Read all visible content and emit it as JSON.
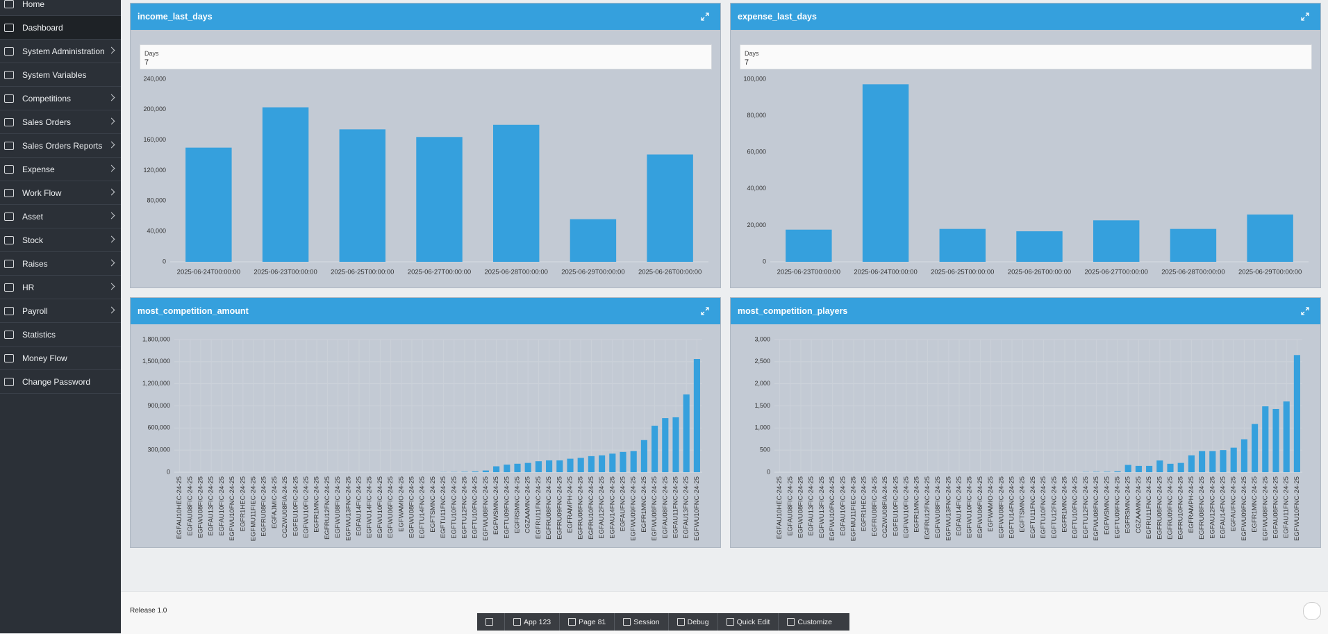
{
  "sidebar": {
    "items": [
      {
        "label": "Home"
      },
      {
        "label": "Dashboard",
        "selected": true
      },
      {
        "label": "System Administration",
        "submenu": true
      },
      {
        "label": "System Variables"
      },
      {
        "label": "Competitions",
        "submenu": true
      },
      {
        "label": "Sales Orders",
        "submenu": true
      },
      {
        "label": "Sales Orders Reports",
        "submenu": true
      },
      {
        "label": "Expense",
        "submenu": true
      },
      {
        "label": "Work Flow",
        "submenu": true
      },
      {
        "label": "Asset",
        "submenu": true
      },
      {
        "label": "Stock",
        "submenu": true
      },
      {
        "label": "Raises",
        "submenu": true
      },
      {
        "label": "HR",
        "submenu": true
      },
      {
        "label": "Payroll",
        "submenu": true
      },
      {
        "label": "Statistics"
      },
      {
        "label": "Money Flow"
      },
      {
        "label": "Change Password"
      }
    ]
  },
  "panels": [
    {
      "title": "income_last_days",
      "filter": {
        "label": "Days",
        "value": "7"
      },
      "chart_data": {
        "type": "bar",
        "color": "#35a0dd",
        "grid": false,
        "categories": [
          "2025-06-24T00:00:00",
          "2025-06-23T00:00:00",
          "2025-06-25T00:00:00",
          "2025-06-27T00:00:00",
          "2025-06-28T00:00:00",
          "2025-06-29T00:00:00",
          "2025-06-26T00:00:00"
        ],
        "values": [
          150000,
          203000,
          174000,
          164000,
          180000,
          56000,
          141000
        ],
        "ylim": [
          0,
          240000
        ],
        "yticks": [
          0,
          {
            "value": 40000,
            "label": "40,000"
          },
          {
            "value": 80000,
            "label": "80,000"
          },
          {
            "value": 120000,
            "label": "120,000"
          },
          {
            "value": 160000,
            "label": "160,000"
          },
          {
            "value": 200000,
            "label": "200,000"
          },
          {
            "value": 240000,
            "label": "240,000"
          }
        ]
      }
    },
    {
      "title": "expense_last_days",
      "filter": {
        "label": "Days",
        "value": "7"
      },
      "chart_data": {
        "type": "bar",
        "color": "#35a0dd",
        "grid": false,
        "categories": [
          "2025-06-23T00:00:00",
          "2025-06-24T00:00:00",
          "2025-06-25T00:00:00",
          "2025-06-26T00:00:00",
          "2025-06-27T00:00:00",
          "2025-06-28T00:00:00",
          "2025-06-29T00:00:00"
        ],
        "values": [
          17600,
          97200,
          18000,
          16700,
          22700,
          18000,
          25900
        ],
        "ylim": [
          0,
          100000
        ],
        "yticks": [
          0,
          {
            "value": 20000,
            "label": "20,000"
          },
          {
            "value": 40000,
            "label": "40,000"
          },
          {
            "value": 60000,
            "label": "60,000"
          },
          {
            "value": 80000,
            "label": "80,000"
          },
          {
            "value": 100000,
            "label": "100,000"
          }
        ]
      }
    },
    {
      "title": "most_competition_amount",
      "chart_data": {
        "type": "bar",
        "color": "#35a0dd",
        "grid": true,
        "categories": [
          "EGFAU10HEC-24-25",
          "EGFAU08FIC-24-25",
          "EGFWU08FIC-24-25",
          "EGFAU13FIC-24-25",
          "EGFAU10FIC-24-25",
          "EGFWU10FNC-24-25",
          "EGFR1HEC-24-25",
          "EGFMU11FIEC-24-25",
          "EGFRU08FIC-24-25",
          "EGFAJMIC-24-25",
          "CGZWU08FIA-24-25",
          "EGFEU10FIC-24-25",
          "EGFWU10FIC-24-25",
          "EGFR1MNC-24-25",
          "EGFRU12FNC-24-25",
          "EGFWU08FIC-24-25",
          "EGFWU13FNC-24-25",
          "EGFAU14FIC-24-25",
          "EGFWU14FIC-24-25",
          "EGFWU10FIC-24-25",
          "EGFWU06FIC-24-25",
          "EGFWAMIO-24-25",
          "EGFWU08FIC-24-25",
          "EGFTU14FNC-24-25",
          "EGFTSMNC-24-25",
          "EGFTU11FNC-24-25",
          "EGFTU10FNC-24-25",
          "EGFTU12FNC-24-25",
          "EGFTU10FNC-24-25",
          "EGFWU08FNC-24-25",
          "EGFWSMNC-24-25",
          "EGFTU09FNC-24-25",
          "EGFRSMNC-24-25",
          "CGZAAMNC-24-25",
          "EGFRU11FNC-24-25",
          "EGFRU08FNC-24-25",
          "EGFRU09FNC-24-25",
          "EGFRAMPH-24-25",
          "EGFRU08FNC-24-25",
          "EGFRU10FNC-24-25",
          "EGFAU12FNC-24-25",
          "EGFAU14FNC-24-25",
          "EGFAUFNC-24-25",
          "EGFWU09FNC-24-25",
          "EGFR1MNC-24-25",
          "EGFWU08FNC-24-25",
          "EGFAU08FNC-24-25",
          "EGFAU11FNC-24-25",
          "EGFAU13FNC-24-25",
          "EGFWU10FNC-24-25"
        ],
        "values": [
          0,
          0,
          0,
          0,
          0,
          0,
          0,
          0,
          0,
          0,
          0,
          0,
          0,
          0,
          0,
          0,
          0,
          0,
          0,
          0,
          0,
          0,
          0,
          0,
          0,
          2000,
          3000,
          5000,
          10000,
          23000,
          80000,
          103000,
          115000,
          126000,
          149000,
          160000,
          160000,
          183000,
          195000,
          218000,
          229000,
          252000,
          275000,
          287000,
          436000,
          631000,
          734000,
          745000,
          1055000,
          1536000
        ],
        "ylim": [
          0,
          1800000
        ],
        "yticks": [
          0,
          {
            "value": 300000,
            "label": "300,000"
          },
          {
            "value": 600000,
            "label": "600,000"
          },
          {
            "value": 900000,
            "label": "900,000"
          },
          {
            "value": 1200000,
            "label": "1,200,000"
          },
          {
            "value": 1500000,
            "label": "1,500,000"
          },
          {
            "value": 1800000,
            "label": "1,800,000"
          }
        ]
      }
    },
    {
      "title": "most_competition_players",
      "chart_data": {
        "type": "bar",
        "color": "#35a0dd",
        "grid": true,
        "categories": [
          "EGFAU10HEC-24-25",
          "EGFAU08FIC-24-25",
          "EGFWU08FIC-24-25",
          "EGFAU13FIC-24-25",
          "EGFWU13FIC-24-25",
          "EGFWU10FNC-24-25",
          "EGFAU10FIC-24-25",
          "EGFMU11FIEC-24-25",
          "EGFR1HEC-24-25",
          "EGFRU08FIC-24-25",
          "CGZWU08FIA-24-25",
          "EGFEU10FIC-24-25",
          "EGFWU10FIC-24-25",
          "EGFR1MNC-24-25",
          "EGFRU12FNC-24-25",
          "EGFWU08FIC-24-25",
          "EGFWU13FNC-24-25",
          "EGFAU14FIC-24-25",
          "EGFWU10FIC-24-25",
          "EGFWU06FIC-24-25",
          "EGFWAMIO-24-25",
          "EGFWU08FIC-24-25",
          "EGFTU14FNC-24-25",
          "EGFTSMNC-24-25",
          "EGFTU11FNC-24-25",
          "EGFTU10FNC-24-25",
          "EGFTU12FNC-24-25",
          "EGFR1MNC-24-25",
          "EGFTU10FNC-24-25",
          "EGFTU12FNC-24-25",
          "EGFWU08FNC-24-25",
          "EGFWSMNC-24-25",
          "EGFTU09FNC-24-25",
          "EGFRSMNC-24-25",
          "CGZAAMNC-24-25",
          "EGFRU11FNC-24-25",
          "EGFRU08FNC-24-25",
          "EGFRU09FNC-24-25",
          "EGFRU10FNC-24-25",
          "EGFRAMPH-24-25",
          "EGFRU08FNC-24-25",
          "EGFAU12FNC-24-25",
          "EGFAU14FNC-24-25",
          "EGFAUFNC-24-25",
          "EGFWU09FNC-24-25",
          "EGFR1MNC-24-25",
          "EGFWU08FNC-24-25",
          "EGFAU08FNC-24-25",
          "EGFAU11FNC-24-25",
          "EGFWU10FNC-24-25"
        ],
        "values": [
          0,
          0,
          0,
          0,
          0,
          0,
          0,
          0,
          0,
          0,
          0,
          0,
          0,
          0,
          0,
          0,
          0,
          0,
          0,
          0,
          0,
          0,
          0,
          0,
          0,
          0,
          0,
          0,
          0,
          5,
          8,
          10,
          20,
          165,
          143,
          143,
          265,
          191,
          210,
          382,
          478,
          478,
          500,
          555,
          745,
          1090,
          1490,
          1430,
          1600,
          2650
        ],
        "ylim": [
          0,
          3000
        ],
        "yticks": [
          0,
          500,
          {
            "value": 1000,
            "label": "1,000"
          },
          {
            "value": 1500,
            "label": "1,500"
          },
          {
            "value": 2000,
            "label": "2,000"
          },
          {
            "value": 2500,
            "label": "2,500"
          },
          {
            "value": 3000,
            "label": "3,000"
          }
        ]
      }
    }
  ],
  "footer": {
    "release": "Release 1.0"
  },
  "toolbar": {
    "items": [
      "App 123",
      "Page 81",
      "Session",
      "Debug",
      "Quick Edit",
      "Customize"
    ]
  }
}
